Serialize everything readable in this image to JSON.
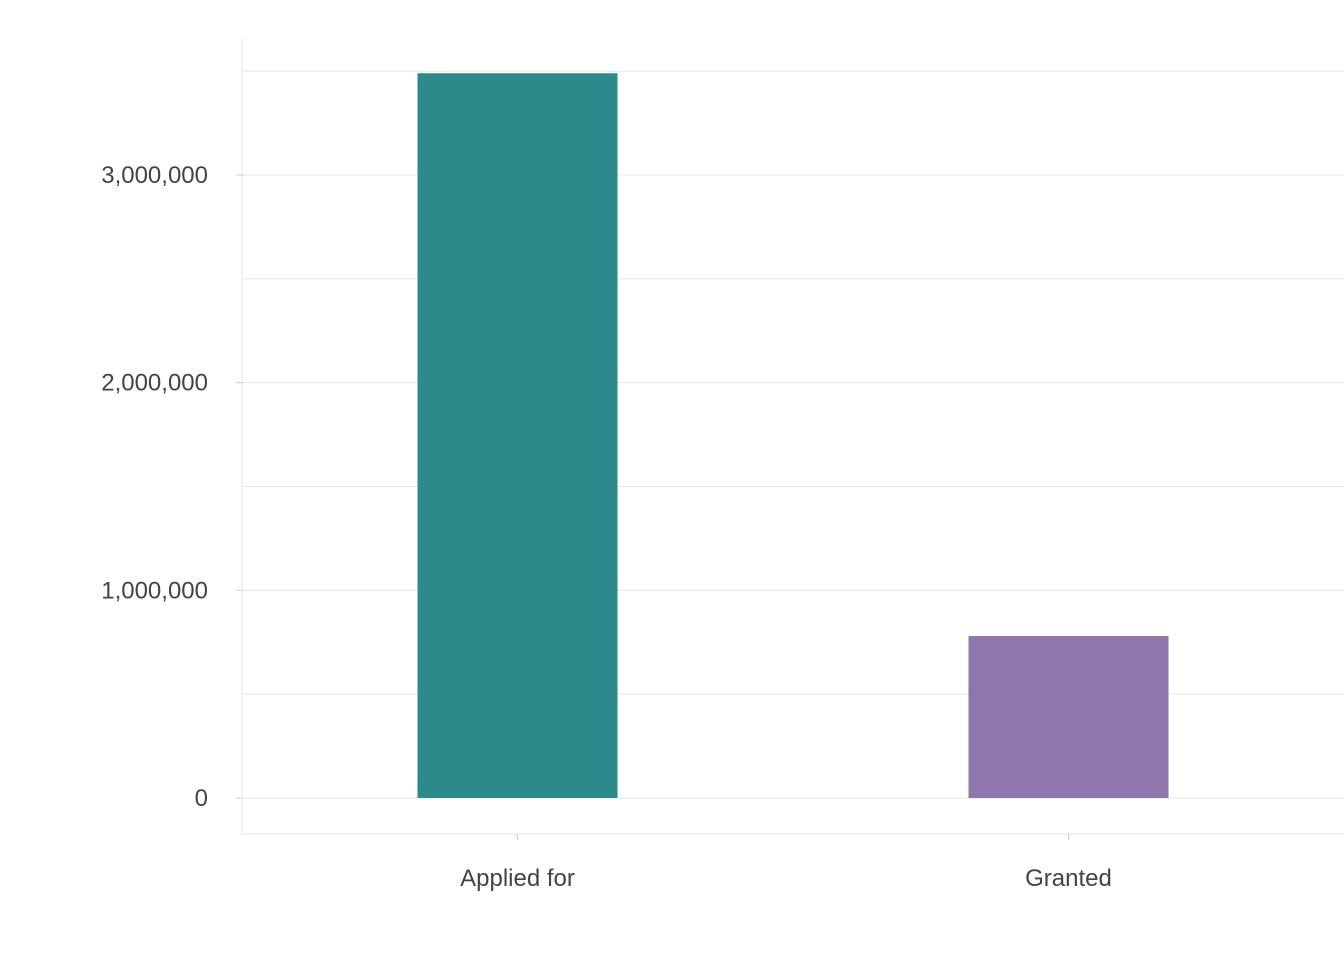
{
  "chart_data": {
    "type": "bar",
    "title": "",
    "xlabel": "",
    "ylabel": "",
    "categories": [
      "Applied for",
      "Granted"
    ],
    "values": [
      3490000,
      780000
    ],
    "colors": [
      "#2c8a8a",
      "#8e77ad"
    ],
    "ylim": [
      0,
      3500000
    ],
    "yticks": [
      0,
      1000000,
      2000000,
      3000000
    ],
    "ytick_labels": [
      "0",
      "1,000,000",
      "2,000,000",
      "3,000,000"
    ],
    "grid": true,
    "legend": "none"
  }
}
